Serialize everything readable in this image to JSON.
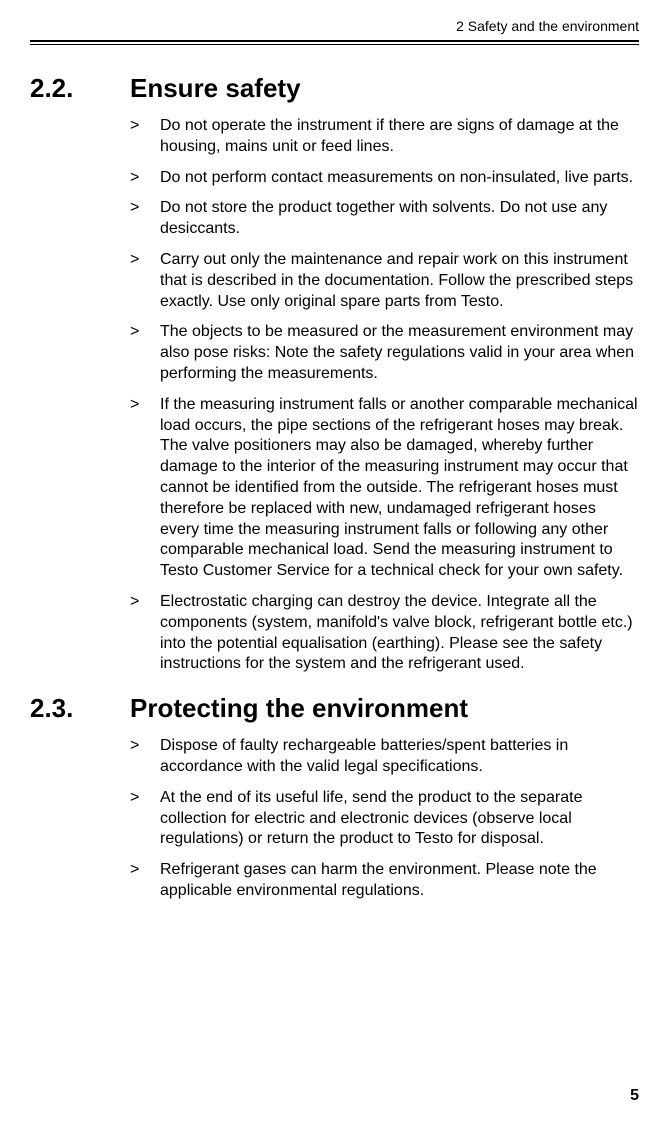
{
  "header": {
    "running": "2 Safety and the environment"
  },
  "sections": [
    {
      "number": "2.2.",
      "title": "Ensure safety",
      "bullets": [
        "Do not operate the instrument if there are signs of damage at the housing, mains unit or feed lines.",
        "Do not perform contact measurements on non-insulated, live parts.",
        "Do not store the product together with solvents. Do not use any desiccants.",
        "Carry out only the maintenance and repair work on this instrument that is described in the documentation. Follow the prescribed steps exactly. Use only original spare parts from Testo.",
        "The objects to be measured or the measurement environment may also pose risks: Note the safety regulations valid in your area when performing the measurements.",
        "If the measuring instrument falls or another comparable mechanical load occurs, the pipe sections of the refrigerant hoses may break. The valve positioners may also be damaged, whereby further damage to the interior of the measuring instrument may occur that cannot be identified from the outside. The refrigerant hoses must therefore be replaced with new, undamaged refrigerant hoses every time the measuring instrument falls or following any other comparable mechanical load. Send the measuring instrument to Testo Customer Service for a technical check for your own safety.",
        "Electrostatic charging can destroy the device. Integrate all the components (system, manifold's valve block, refrigerant bottle etc.) into the potential equalisation (earthing). Please see the safety instructions for the system and the refrigerant used."
      ]
    },
    {
      "number": "2.3.",
      "title": "Protecting the environment",
      "bullets": [
        "Dispose of faulty rechargeable batteries/spent batteries in accordance with the valid legal specifications.",
        "At the end of its useful life, send the product to the separate collection for electric and electronic devices (observe local regulations) or return the product to Testo for disposal.",
        "Refrigerant gases can harm the environment. Please note the applicable environmental regulations."
      ]
    }
  ],
  "bullet_marker": ">",
  "page_number": "5"
}
